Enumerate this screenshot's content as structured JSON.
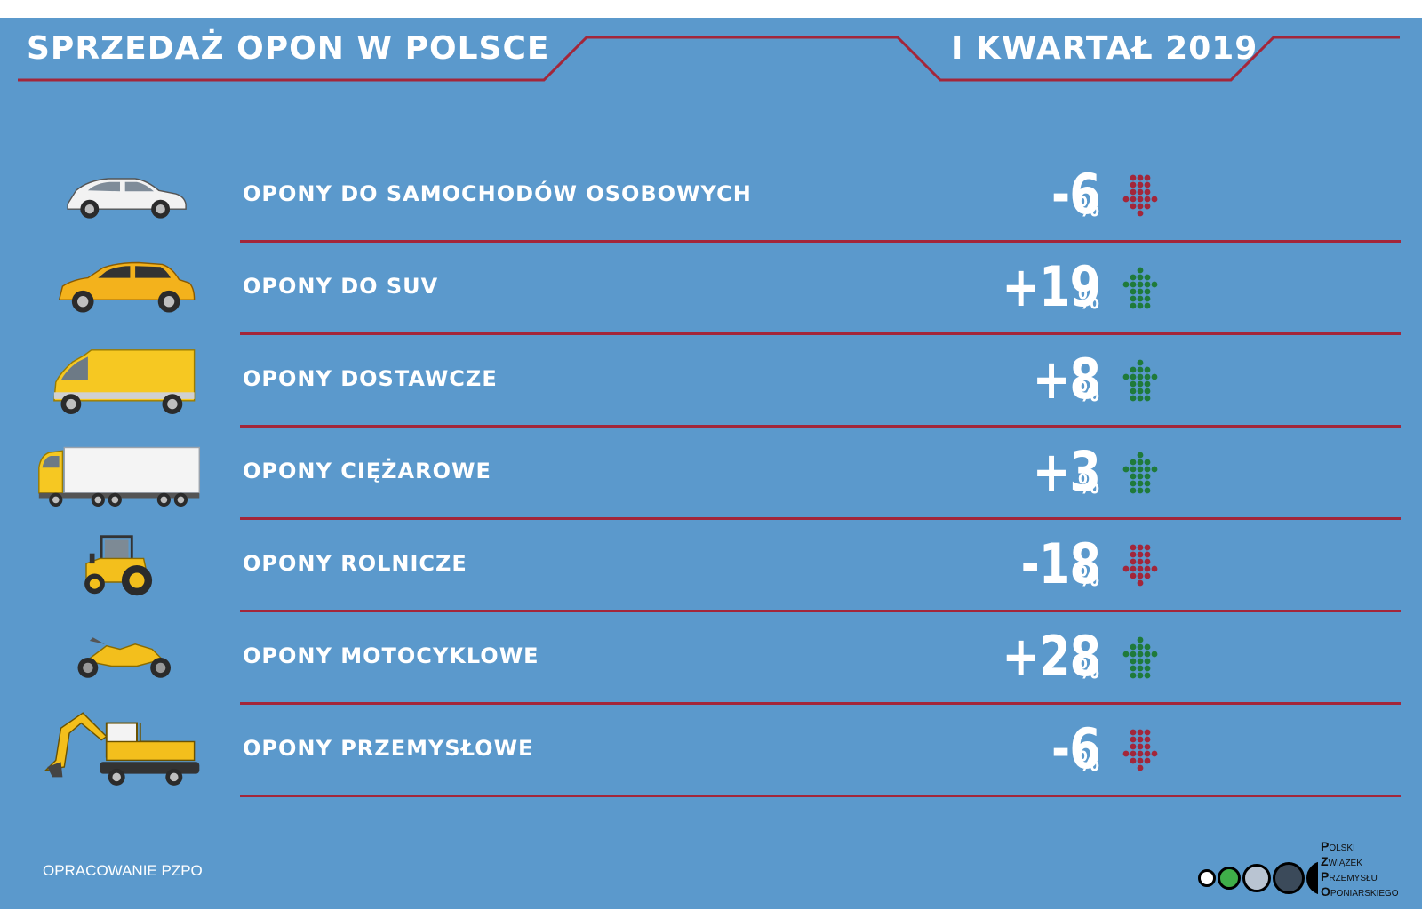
{
  "header": {
    "title_left": "SPRZEDAŻ OPON W POLSCE",
    "title_right": "I KWARTAŁ 2019"
  },
  "chart_data": {
    "type": "table",
    "title": "SPRZEDAŻ OPON W POLSCE",
    "subtitle": "I KWARTAŁ 2019",
    "unit": "%",
    "categories": [
      "OPONY DO SAMOCHODÓW OSOBOWYCH",
      "OPONY DO SUV",
      "OPONY DOSTAWCZE",
      "OPONY CIĘŻAROWE",
      "OPONY ROLNICZE",
      "OPONY MOTOCYKLOWE",
      "OPONY PRZEMYSŁOWE"
    ],
    "values": [
      -6,
      19,
      8,
      3,
      -18,
      28,
      -6
    ],
    "value_labels": [
      "-6",
      "+19",
      "+8",
      "+3",
      "-18",
      "+28",
      "-6"
    ],
    "colors": {
      "up": "#1f7a3a",
      "down": "#a3263a",
      "background": "#5b99cc",
      "rule": "#a3263a"
    }
  },
  "rows": [
    {
      "icon": "sedan-icon",
      "color": "#f2f2f2"
    },
    {
      "icon": "suv-icon",
      "color": "#f3b21c"
    },
    {
      "icon": "van-icon",
      "color": "#f6c822"
    },
    {
      "icon": "truck-icon",
      "color": "#f6c822"
    },
    {
      "icon": "tractor-icon",
      "color": "#f3bf1c"
    },
    {
      "icon": "motorcycle-icon",
      "color": "#f3bf1c"
    },
    {
      "icon": "excavator-icon",
      "color": "#f3bf1c"
    }
  ],
  "footer": {
    "note": "OPRACOWANIE PZPO",
    "logo_lines": [
      "Polski",
      "Związek",
      "Przemysłu",
      "Oponiarskiego"
    ],
    "logo_colors": [
      "#ffffff",
      "#3fae49",
      "#b9c4d2",
      "#3b4a5a",
      "#000000"
    ]
  }
}
